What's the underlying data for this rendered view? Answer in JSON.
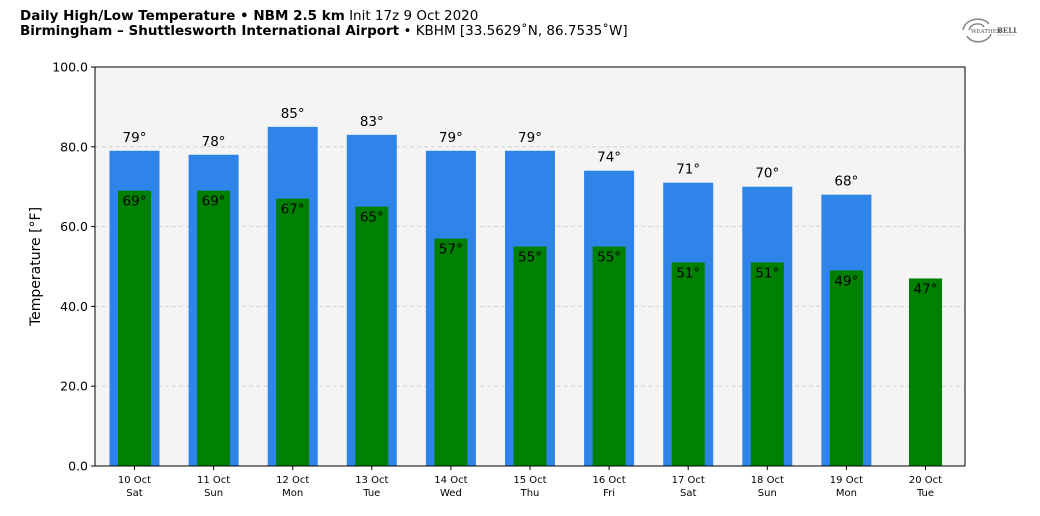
{
  "header": {
    "title_bold": "Daily High/Low Temperature • NBM 2.5 km",
    "init": "Init 17z 9 Oct 2020",
    "location_bold": "Birmingham – Shuttlesworth International Airport",
    "station": "• KBHM [33.5629˚N, 86.7535˚W]"
  },
  "logo": {
    "text_top": "WEATHER",
    "text_bell": "BELL",
    "icon": "weatherbell-logo"
  },
  "colors": {
    "high": "#2f84ea",
    "low": "#008000",
    "plot_bg": "#f4f4f4",
    "grid": "#cccccc"
  },
  "chart_data": {
    "type": "bar",
    "title": "",
    "xlabel": "",
    "ylabel": "Temperature [°F]",
    "ylim": [
      0,
      100
    ],
    "yticks": [
      "0.0",
      "20.0",
      "40.0",
      "60.0",
      "80.0",
      "100.0"
    ],
    "grid": true,
    "categories": [
      [
        "10 Oct",
        "Sat"
      ],
      [
        "11 Oct",
        "Sun"
      ],
      [
        "12 Oct",
        "Mon"
      ],
      [
        "13 Oct",
        "Tue"
      ],
      [
        "14 Oct",
        "Wed"
      ],
      [
        "15 Oct",
        "Thu"
      ],
      [
        "16 Oct",
        "Fri"
      ],
      [
        "17 Oct",
        "Sat"
      ],
      [
        "18 Oct",
        "Sun"
      ],
      [
        "19 Oct",
        "Mon"
      ],
      [
        "20 Oct",
        "Tue"
      ]
    ],
    "series": [
      {
        "name": "High",
        "values": [
          79,
          78,
          85,
          83,
          79,
          79,
          74,
          71,
          70,
          68,
          null
        ],
        "labels": [
          "79°",
          "78°",
          "85°",
          "83°",
          "79°",
          "79°",
          "74°",
          "71°",
          "70°",
          "68°",
          ""
        ]
      },
      {
        "name": "Low",
        "values": [
          69,
          69,
          67,
          65,
          57,
          55,
          55,
          51,
          51,
          49,
          47
        ],
        "labels": [
          "69°",
          "69°",
          "67°",
          "65°",
          "57°",
          "55°",
          "55°",
          "51°",
          "51°",
          "49°",
          "47°"
        ]
      }
    ]
  }
}
